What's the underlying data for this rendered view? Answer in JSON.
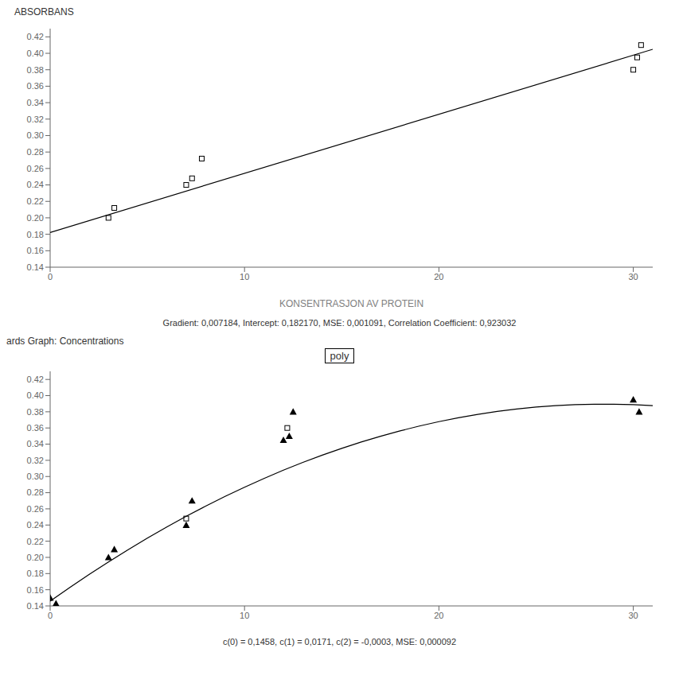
{
  "chart_data": [
    {
      "type": "scatter",
      "ylabel": "ABSORBANS",
      "xlabel": "KONSENTRASJON AV PROTEIN",
      "caption": "Gradient: 0,007184, Intercept: 0,182170, MSE: 0,001091, Correlation Coefficient: 0,923032",
      "xlim": [
        0,
        31
      ],
      "ylim": [
        0.14,
        0.43
      ],
      "xticks": [
        0,
        10,
        20,
        30
      ],
      "yticks": [
        0.14,
        0.16,
        0.18,
        {
          "value": 0.2,
          "label": "0.20"
        },
        0.22,
        0.24,
        0.26,
        0.28,
        {
          "value": 0.3,
          "label": "0.30"
        },
        0.32,
        0.34,
        0.36,
        0.38,
        {
          "value": 0.4,
          "label": "0.40"
        },
        0.42
      ],
      "grid": false,
      "series": [
        {
          "type": "line",
          "color": "black",
          "x": [
            0,
            31
          ],
          "values": [
            0.18217,
            0.404874
          ]
        },
        {
          "type": "scatter",
          "marker": "square",
          "color": "black",
          "x": [
            3.0,
            3.3,
            7.0,
            7.3,
            7.8,
            30.0,
            30.2,
            30.4
          ],
          "values": [
            0.2,
            0.212,
            0.24,
            0.248,
            0.272,
            0.38,
            0.395,
            0.41
          ]
        }
      ]
    },
    {
      "type": "scatter",
      "title": "poly",
      "annotations": [
        "ards Graph: Concentrations"
      ],
      "caption": "c(0) = 0,1458, c(1) = 0,0171, c(2) = -0,0003, MSE: 0,000092",
      "xlim": [
        0,
        31
      ],
      "ylim": [
        0.14,
        0.43
      ],
      "xticks": [
        0,
        10,
        20,
        30
      ],
      "yticks": [
        0.14,
        0.16,
        0.18,
        {
          "value": 0.2,
          "label": "0.20"
        },
        0.22,
        0.24,
        0.26,
        0.28,
        {
          "value": 0.3,
          "label": "0.30"
        },
        0.32,
        0.34,
        0.36,
        0.38,
        {
          "value": 0.4,
          "label": "0.40"
        },
        0.42
      ],
      "grid": false,
      "series": [
        {
          "type": "line",
          "color": "black",
          "x": [
            0,
            1,
            2,
            3,
            4,
            5,
            6,
            7,
            8,
            9,
            10,
            11,
            12,
            13,
            14,
            15,
            16,
            17,
            18,
            19,
            20,
            21,
            22,
            23,
            24,
            25,
            26,
            27,
            28,
            29,
            30,
            31
          ],
          "values": [
            0.1458,
            0.1626,
            0.1788,
            0.1944,
            0.2094,
            0.2238,
            0.2376,
            0.2508,
            0.2634,
            0.2754,
            0.2868,
            0.2976,
            0.3078,
            0.3174,
            0.3264,
            0.3348,
            0.3426,
            0.3498,
            0.3564,
            0.3624,
            0.3678,
            0.3726,
            0.3768,
            0.3804,
            0.3834,
            0.3858,
            0.3876,
            0.3888,
            0.3894,
            0.3894,
            0.3888,
            0.3876
          ]
        },
        {
          "type": "scatter",
          "marker": "triangle",
          "color": "black",
          "x": [
            0.0,
            0.3,
            3.0,
            3.3,
            7.0,
            7.3,
            12.0,
            12.3,
            12.5,
            30.0,
            30.3
          ],
          "values": [
            0.15,
            0.143,
            0.2,
            0.21,
            0.24,
            0.27,
            0.345,
            0.35,
            0.38,
            0.395,
            0.38
          ]
        },
        {
          "type": "scatter",
          "marker": "square",
          "color": "black",
          "x": [
            7.0,
            12.2
          ],
          "values": [
            0.248,
            0.36
          ]
        }
      ]
    }
  ]
}
